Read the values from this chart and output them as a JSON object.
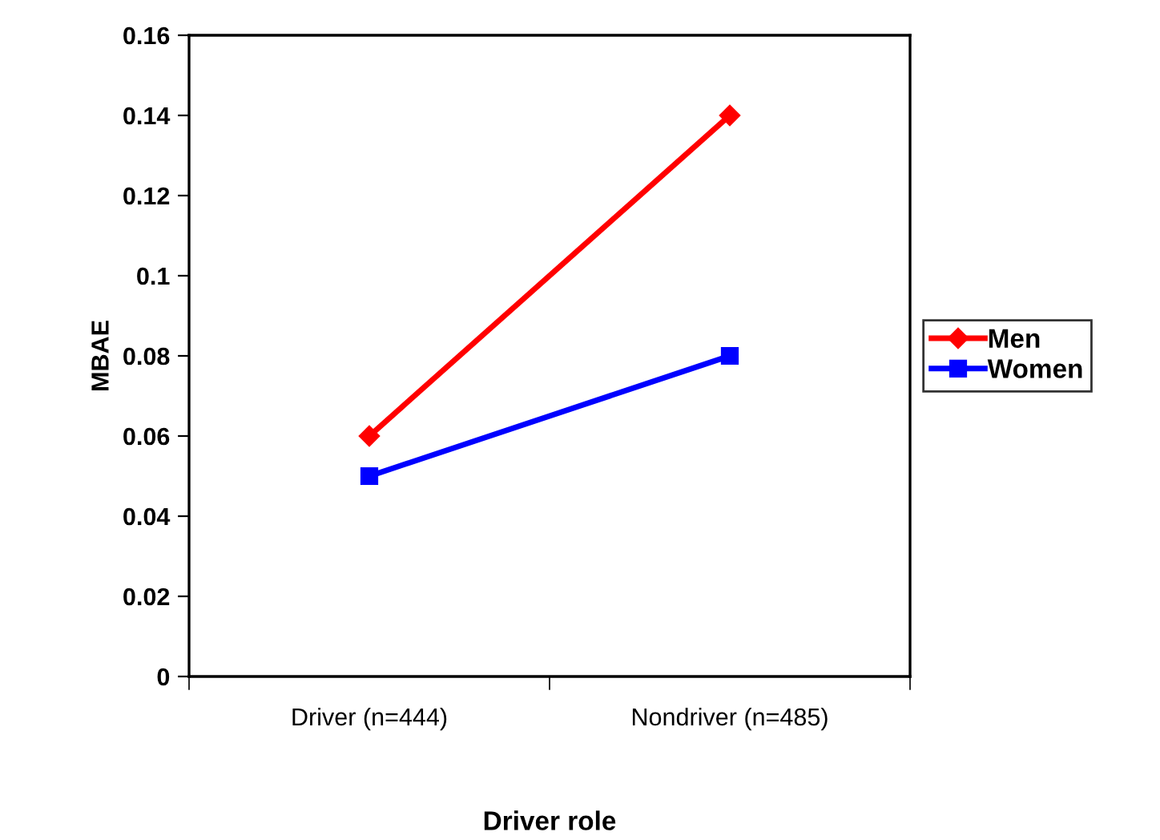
{
  "chart_data": {
    "type": "line",
    "xlabel": "Driver role",
    "ylabel": "MBAE",
    "categories": [
      "Driver (n=444)",
      "Nondriver (n=485)"
    ],
    "series": [
      {
        "name": "Men",
        "color": "#ff0000",
        "values": [
          0.06,
          0.14
        ],
        "marker": "diamond"
      },
      {
        "name": "Women",
        "color": "#0000ff",
        "values": [
          0.05,
          0.08
        ],
        "marker": "square"
      }
    ],
    "ylim": [
      0,
      0.16
    ],
    "yticks": [
      0,
      0.02,
      0.04,
      0.06,
      0.08,
      0.1,
      0.12,
      0.14,
      0.16
    ],
    "grid": false,
    "legend": "right",
    "line_style": "solid"
  }
}
